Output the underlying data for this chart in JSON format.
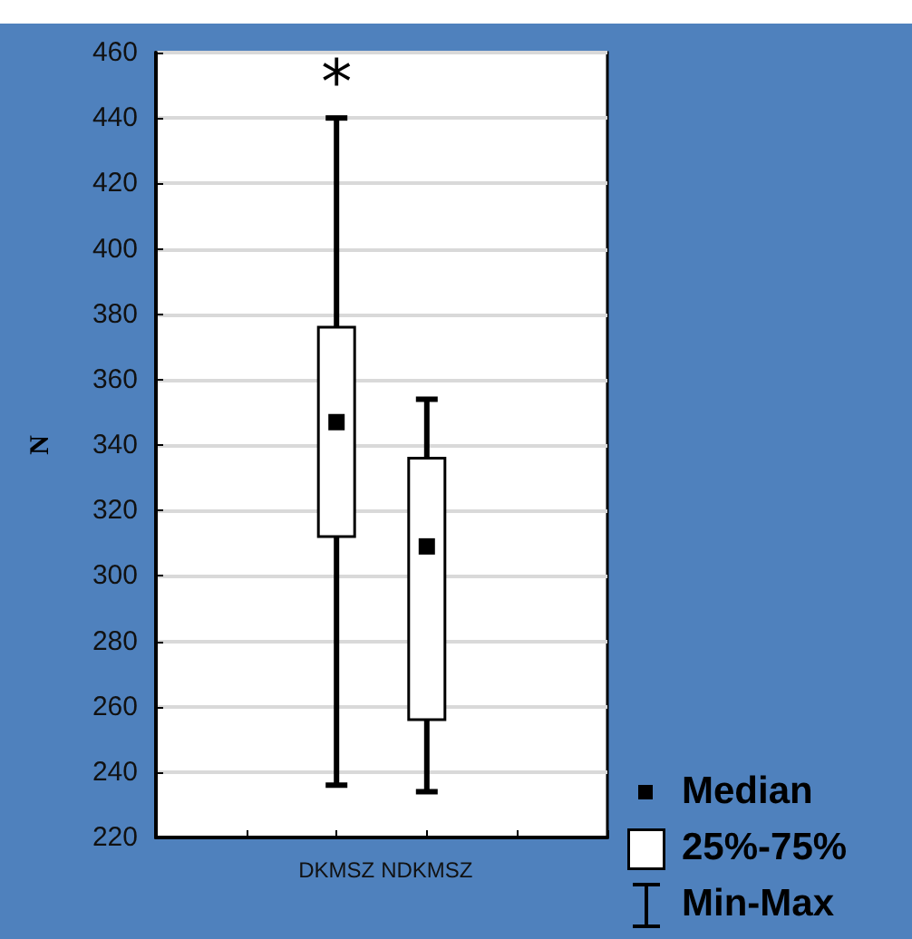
{
  "chart_data": {
    "type": "box",
    "ylabel": "N",
    "categories": [
      "DKMSZ",
      "NDKMSZ"
    ],
    "boxes": [
      {
        "low": 236,
        "q1": 312,
        "median": 347,
        "q3": 376,
        "high": 440
      },
      {
        "low": 234,
        "q1": 256,
        "median": 309,
        "q3": 336,
        "high": 354
      }
    ],
    "ylim": [
      220,
      460
    ],
    "yticks": [
      220,
      240,
      260,
      280,
      300,
      320,
      340,
      360,
      380,
      400,
      420,
      440,
      460
    ],
    "grid": "y",
    "annotations": [
      "*",
      "Median",
      "25%-75%",
      "Min-Max"
    ]
  }
}
